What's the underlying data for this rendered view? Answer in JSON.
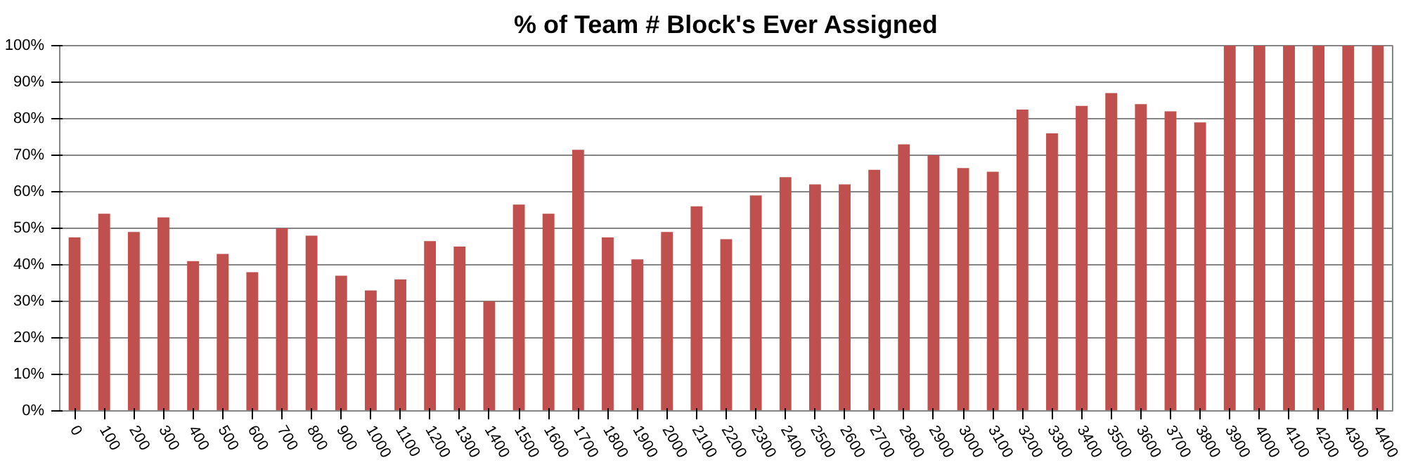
{
  "chart_data": {
    "type": "bar",
    "title": "% of Team # Block's Ever Assigned",
    "categories": [
      "0",
      "100",
      "200",
      "300",
      "400",
      "500",
      "600",
      "700",
      "800",
      "900",
      "1000",
      "1100",
      "1200",
      "1300",
      "1400",
      "1500",
      "1600",
      "1700",
      "1800",
      "1900",
      "2000",
      "2100",
      "2200",
      "2300",
      "2400",
      "2500",
      "2600",
      "2700",
      "2800",
      "2900",
      "3000",
      "3100",
      "3200",
      "3300",
      "3400",
      "3500",
      "3600",
      "3700",
      "3800",
      "3900",
      "4000",
      "4100",
      "4200",
      "4300",
      "4400"
    ],
    "values": [
      47.5,
      54,
      49,
      53,
      41,
      43,
      38,
      50,
      48,
      37,
      33,
      36,
      46.5,
      45,
      30,
      56.5,
      54,
      71.5,
      47.5,
      41.5,
      49,
      56,
      47,
      59,
      64,
      62,
      62,
      66,
      73,
      70,
      66.5,
      65.5,
      82.5,
      76,
      83.5,
      87,
      84,
      82,
      79,
      100,
      100,
      100,
      100,
      100,
      100
    ],
    "color": "#c0504d",
    "ylim": [
      0,
      100
    ],
    "yticks": [
      {
        "value": 0,
        "label": "0%"
      },
      {
        "value": 10,
        "label": "10%"
      },
      {
        "value": 20,
        "label": "20%"
      },
      {
        "value": 30,
        "label": "30%"
      },
      {
        "value": 40,
        "label": "40%"
      },
      {
        "value": 50,
        "label": "50%"
      },
      {
        "value": 60,
        "label": "60%"
      },
      {
        "value": 70,
        "label": "70%"
      },
      {
        "value": 80,
        "label": "80%"
      },
      {
        "value": 90,
        "label": "90%"
      },
      {
        "value": 100,
        "label": "100%"
      }
    ],
    "grid": "y"
  }
}
